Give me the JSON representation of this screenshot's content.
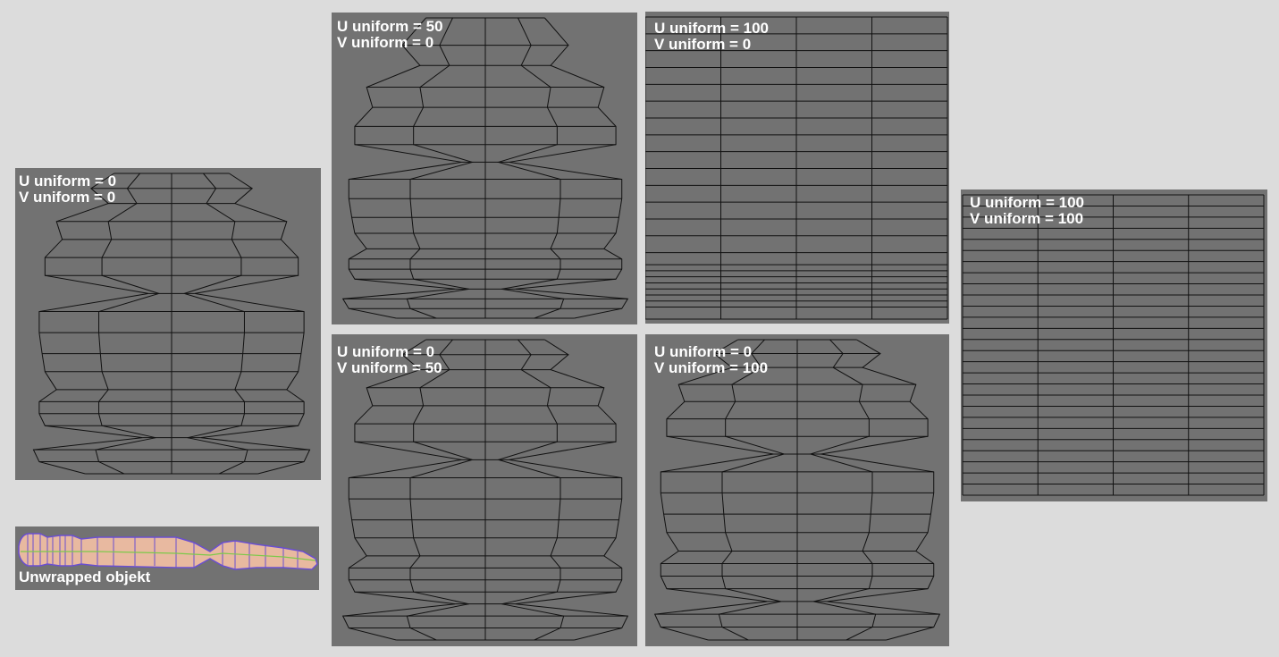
{
  "panels": [
    {
      "id": "p0",
      "lines": [
        "U uniform = 0",
        "V uniform = 0"
      ]
    },
    {
      "id": "p1",
      "lines": [
        "U uniform = 50",
        "V uniform = 0"
      ]
    },
    {
      "id": "p2",
      "lines": [
        "U uniform = 100",
        "V uniform = 0"
      ]
    },
    {
      "id": "p3",
      "lines": [
        "U uniform = 0",
        "V uniform = 50"
      ]
    },
    {
      "id": "p4",
      "lines": [
        "U uniform = 0",
        "V uniform = 100"
      ]
    },
    {
      "id": "p5",
      "lines": [
        "U uniform = 100",
        "V uniform = 100"
      ]
    }
  ],
  "unwrapped": {
    "label": "Unwrapped objekt"
  },
  "colors": {
    "background": "#dcdcdc",
    "panel": "#727272",
    "mesh_line": "#111111",
    "label": "#ffffff",
    "unwrap_fill": "#e8b9a0",
    "unwrap_edge": "#6a4fd0",
    "unwrap_seam": "#7cc94a"
  }
}
